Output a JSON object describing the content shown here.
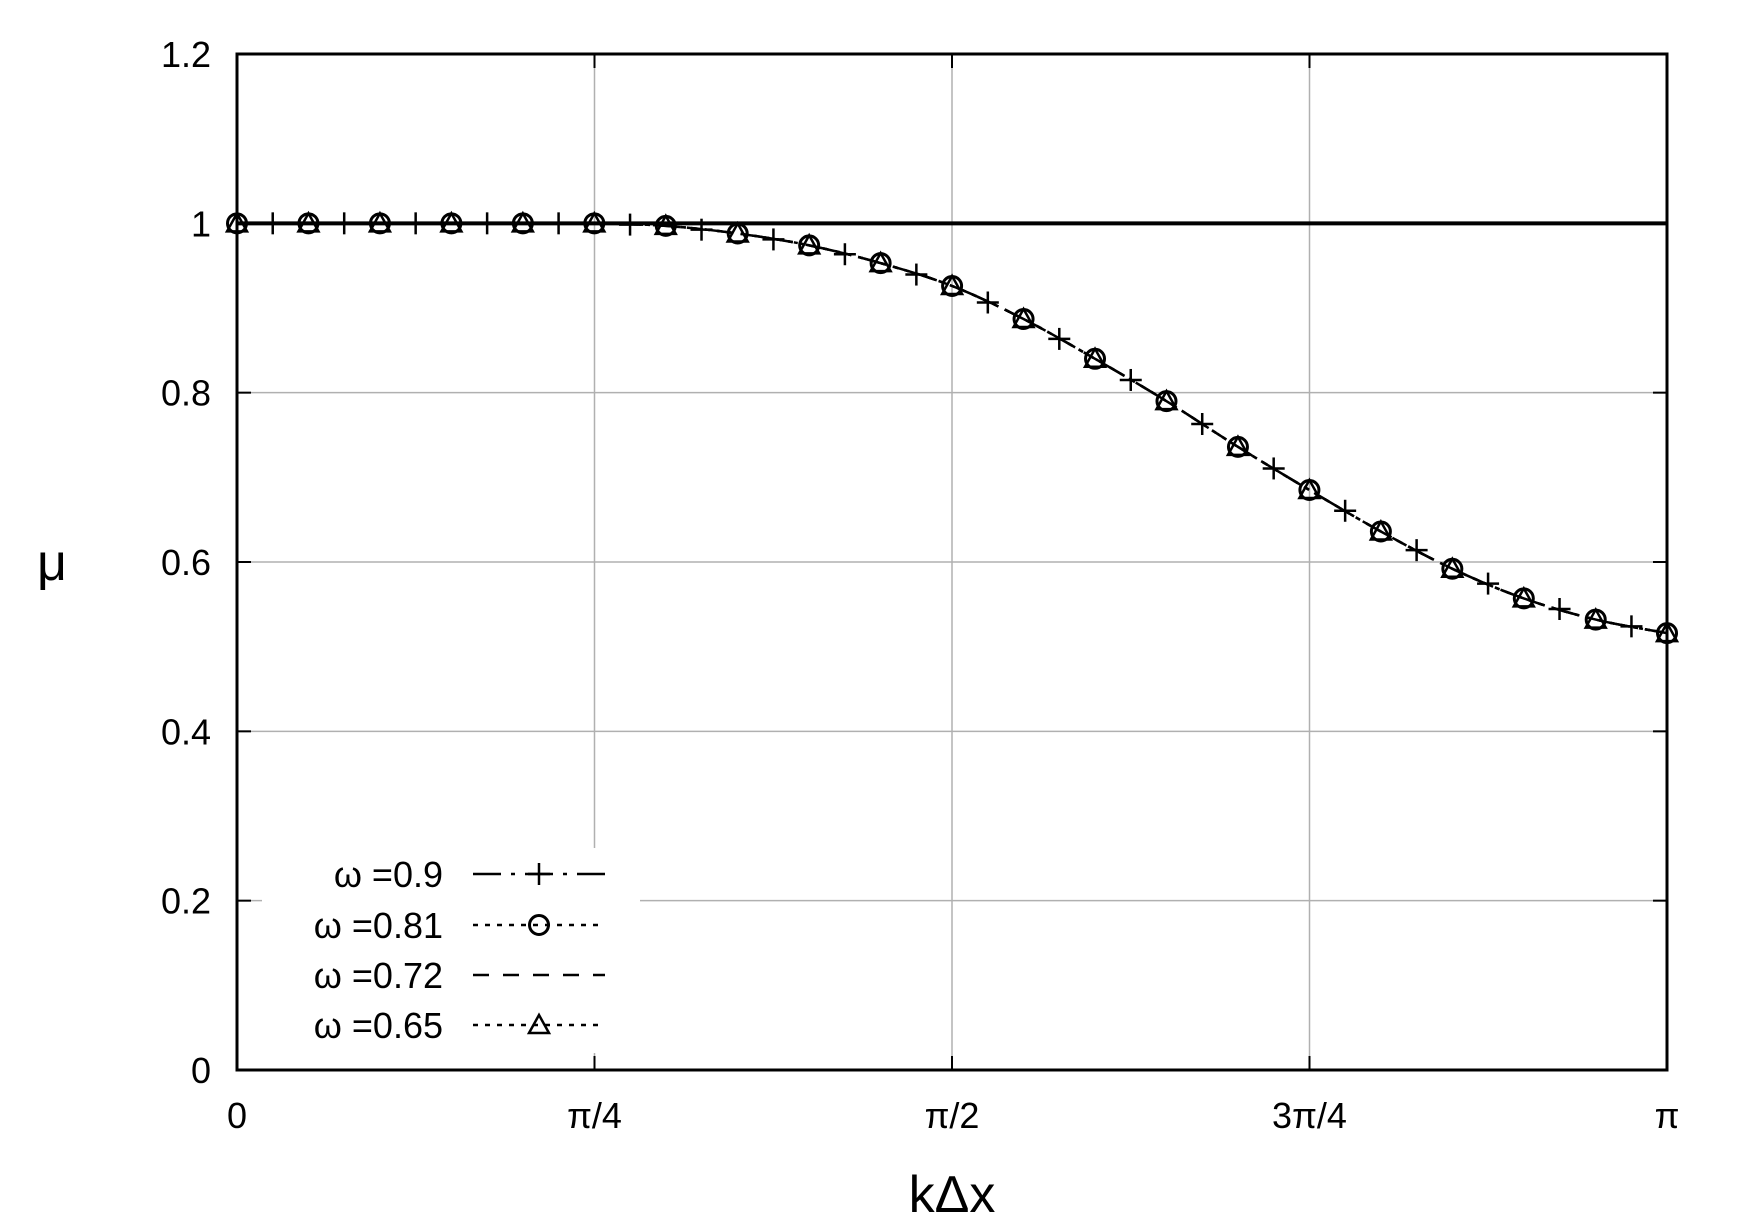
{
  "chart_data": {
    "type": "line",
    "xlabel": "kΔx",
    "ylabel": "μ",
    "xlim": [
      0,
      3.14159
    ],
    "ylim": [
      0,
      1.2
    ],
    "grid": true,
    "legend_position": "bottom-left",
    "x_ticks": [
      {
        "value": 0,
        "label": "0"
      },
      {
        "value": 0.7854,
        "label": "π/4"
      },
      {
        "value": 1.5708,
        "label": "π/2"
      },
      {
        "value": 2.3562,
        "label": "3π/4"
      },
      {
        "value": 3.1416,
        "label": "π"
      }
    ],
    "y_ticks": [
      {
        "value": 0,
        "label": "0"
      },
      {
        "value": 0.2,
        "label": "0.2"
      },
      {
        "value": 0.4,
        "label": "0.4"
      },
      {
        "value": 0.6,
        "label": "0.6"
      },
      {
        "value": 0.8,
        "label": "0.8"
      },
      {
        "value": 1.0,
        "label": "1"
      },
      {
        "value": 1.2,
        "label": "1.2"
      }
    ],
    "reference_line": {
      "y": 1.0
    },
    "x": [
      0,
      0.157,
      0.314,
      0.471,
      0.628,
      0.785,
      0.942,
      1.1,
      1.257,
      1.414,
      1.571,
      1.728,
      1.885,
      2.042,
      2.199,
      2.356,
      2.513,
      2.67,
      2.827,
      2.985,
      3.1416
    ],
    "series": [
      {
        "name": "ω =0.9",
        "line": "long-dash",
        "marker": "plus",
        "values": [
          1.0,
          1.0,
          1.0,
          1.0,
          1.0,
          1.0,
          0.997,
          0.988,
          0.974,
          0.953,
          0.926,
          0.887,
          0.84,
          0.79,
          0.736,
          0.685,
          0.636,
          0.592,
          0.557,
          0.532,
          0.516
        ]
      },
      {
        "name": "ω =0.81",
        "line": "dotted",
        "marker": "circle",
        "values": [
          1.0,
          1.0,
          1.0,
          1.0,
          1.0,
          1.0,
          0.997,
          0.988,
          0.974,
          0.953,
          0.926,
          0.887,
          0.84,
          0.79,
          0.736,
          0.685,
          0.636,
          0.592,
          0.557,
          0.532,
          0.516
        ]
      },
      {
        "name": "ω =0.72",
        "line": "dashed",
        "marker": "none",
        "values": [
          1.0,
          1.0,
          1.0,
          1.0,
          1.0,
          1.0,
          0.997,
          0.988,
          0.974,
          0.953,
          0.926,
          0.887,
          0.84,
          0.79,
          0.736,
          0.685,
          0.636,
          0.592,
          0.557,
          0.532,
          0.516
        ]
      },
      {
        "name": "ω =0.65",
        "line": "dotted",
        "marker": "triangle",
        "values": [
          1.0,
          1.0,
          1.0,
          1.0,
          1.0,
          1.0,
          0.997,
          0.988,
          0.974,
          0.953,
          0.926,
          0.887,
          0.84,
          0.79,
          0.736,
          0.685,
          0.636,
          0.592,
          0.557,
          0.532,
          0.516
        ]
      }
    ]
  }
}
